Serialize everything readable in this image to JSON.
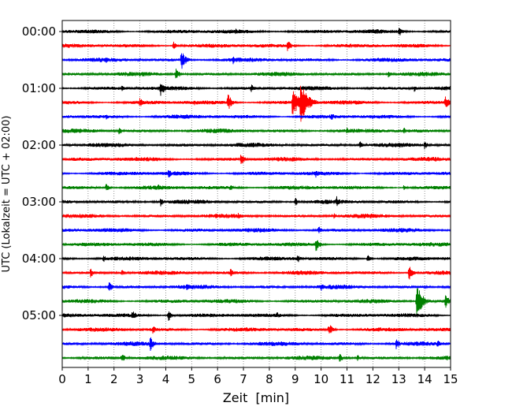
{
  "chart_data": {
    "type": "line",
    "subtype": "helicorder-seismogram",
    "xlabel": "Zeit  [min]",
    "ylabel": "UTC (Lokalzeit = UTC + 02:00)",
    "xlim": [
      0,
      15
    ],
    "x_ticks": [
      "0",
      "1",
      "2",
      "3",
      "4",
      "5",
      "6",
      "7",
      "8",
      "9",
      "10",
      "11",
      "12",
      "13",
      "14",
      "15"
    ],
    "y_ticks": [
      {
        "label": "00:00",
        "row": 0
      },
      {
        "label": "01:00",
        "row": 4
      },
      {
        "label": "02:00",
        "row": 8
      },
      {
        "label": "03:00",
        "row": 12
      },
      {
        "label": "04:00",
        "row": 16
      },
      {
        "label": "05:00",
        "row": 20
      }
    ],
    "rows": 24,
    "minutes_per_row": 15,
    "grid": "vertical dotted at each minute",
    "colors": [
      "#000000",
      "#ff0000",
      "#0000ff",
      "#008000"
    ],
    "background_noise_amplitude": 2.5,
    "events": [
      [
        [
          1.2,
          3
        ],
        [
          6.7,
          4
        ],
        [
          13.0,
          8
        ]
      ],
      [
        [
          4.3,
          6
        ],
        [
          8.7,
          9
        ],
        [
          10.6,
          3
        ]
      ],
      [
        [
          1.7,
          4
        ],
        [
          4.6,
          14
        ],
        [
          6.6,
          6
        ]
      ],
      [
        [
          4.4,
          9
        ],
        [
          12.6,
          5
        ]
      ],
      [
        [
          2.3,
          4
        ],
        [
          3.8,
          12
        ],
        [
          7.3,
          6
        ],
        [
          13.6,
          5
        ]
      ],
      [
        [
          3.0,
          8
        ],
        [
          5.1,
          4
        ],
        [
          6.4,
          12
        ],
        [
          8.9,
          22
        ],
        [
          9.2,
          30
        ],
        [
          14.8,
          10
        ]
      ],
      [
        [
          1.7,
          4
        ],
        [
          10.4,
          6
        ],
        [
          12.0,
          4
        ]
      ],
      [
        [
          2.2,
          6
        ],
        [
          11.0,
          5
        ],
        [
          13.2,
          5
        ]
      ],
      [
        [
          11.5,
          6
        ],
        [
          14.0,
          6
        ]
      ],
      [
        [
          6.9,
          9
        ]
      ],
      [
        [
          4.1,
          7
        ],
        [
          9.8,
          6
        ]
      ],
      [
        [
          1.7,
          6
        ],
        [
          3.7,
          5
        ],
        [
          6.5,
          5
        ],
        [
          13.2,
          4
        ]
      ],
      [
        [
          3.8,
          6
        ],
        [
          9.0,
          6
        ],
        [
          10.6,
          8
        ]
      ],
      [
        [
          6.8,
          5
        ],
        [
          10.5,
          5
        ]
      ],
      [
        [
          9.9,
          6
        ]
      ],
      [
        [
          9.8,
          10
        ]
      ],
      [
        [
          1.6,
          5
        ],
        [
          9.1,
          6
        ],
        [
          11.8,
          6
        ]
      ],
      [
        [
          1.1,
          7
        ],
        [
          2.3,
          5
        ],
        [
          6.5,
          6
        ],
        [
          13.4,
          11
        ]
      ],
      [
        [
          1.8,
          8
        ],
        [
          4.8,
          5
        ],
        [
          10.0,
          6
        ]
      ],
      [
        [
          13.7,
          22
        ],
        [
          14.8,
          10
        ]
      ],
      [
        [
          2.7,
          8
        ],
        [
          4.1,
          8
        ],
        [
          8.3,
          5
        ]
      ],
      [
        [
          3.5,
          6
        ],
        [
          10.3,
          9
        ]
      ],
      [
        [
          3.4,
          10
        ],
        [
          12.9,
          8
        ],
        [
          14.5,
          6
        ]
      ],
      [
        [
          2.3,
          7
        ],
        [
          10.7,
          7
        ],
        [
          11.4,
          5
        ]
      ]
    ]
  }
}
